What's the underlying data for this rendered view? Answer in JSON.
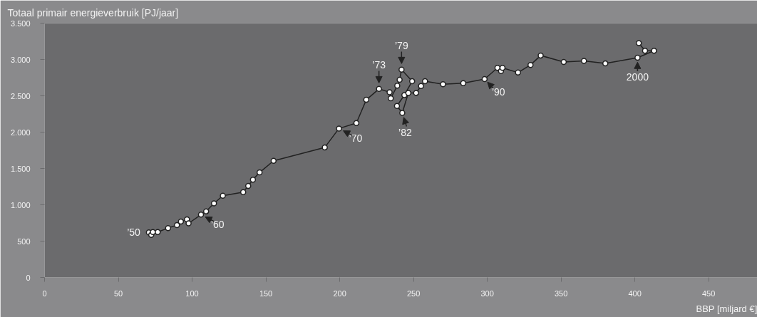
{
  "chart_data": {
    "type": "line",
    "title": "Totaal primair energieverbruik [PJ/jaar]",
    "xlabel": "BBP [miljard €]",
    "x": [
      70.7,
      72.3,
      73.4,
      76.7,
      83.7,
      89.7,
      92.4,
      96.5,
      97.6,
      106,
      109.5,
      114.8,
      120.8,
      134.6,
      138,
      141.2,
      145.7,
      155.2,
      189.9,
      199.5,
      211.3,
      218,
      226.6,
      233.8,
      234.6,
      239,
      240.6,
      241.9,
      249.1,
      243.8,
      238.8,
      242.4,
      246.5,
      251.8,
      255.1,
      257.8,
      270,
      283.7,
      298.2,
      306.9,
      309.3,
      310.3,
      320.8,
      329.3,
      336.2,
      351.8,
      365.5,
      380,
      401.8,
      413,
      406.9,
      402.7
    ],
    "series": [
      {
        "color": "#222222",
        "values": [
          620,
          585,
          625,
          625,
          680,
          720,
          770,
          800,
          745,
          865,
          910,
          1020,
          1125,
          1175,
          1260,
          1345,
          1445,
          1605,
          1790,
          2050,
          2125,
          2445,
          2595,
          2550,
          2465,
          2640,
          2720,
          2860,
          2700,
          2510,
          2360,
          2265,
          2540,
          2540,
          2635,
          2700,
          2660,
          2675,
          2730,
          2885,
          2840,
          2885,
          2820,
          2925,
          3055,
          2965,
          2980,
          2945,
          3025,
          3120,
          3120,
          3225
        ]
      }
    ],
    "xlim": [
      0,
      483
    ],
    "ylim": [
      0,
      3500
    ],
    "xticks": [
      0,
      50,
      100,
      150,
      200,
      250,
      300,
      350,
      400,
      450
    ],
    "yticks": [
      0,
      500,
      {
        "value": 1000,
        "label": "1.000"
      },
      {
        "value": 1500,
        "label": "1.500"
      },
      {
        "value": 2000,
        "label": "2.000"
      },
      {
        "value": 2500,
        "label": "2.500"
      },
      {
        "value": 3000,
        "label": "3.000"
      },
      {
        "value": 3500,
        "label": "3.500"
      }
    ],
    "marker": "circle",
    "line_style": "solid",
    "grid": false,
    "annotations": [
      {
        "text": "’50",
        "x": 70.7,
        "y": 620
      },
      {
        "text": "’60",
        "x": 106,
        "y": 865
      },
      {
        "text": "’70",
        "x": 199.5,
        "y": 2050
      },
      {
        "text": "’73",
        "x": 226.6,
        "y": 2595
      },
      {
        "text": "’79",
        "x": 241.9,
        "y": 2860
      },
      {
        "text": "’82",
        "x": 242.4,
        "y": 2265
      },
      {
        "text": "’90",
        "x": 298.2,
        "y": 2730
      },
      {
        "text": "2000",
        "x": 401.8,
        "y": 3025
      }
    ]
  }
}
